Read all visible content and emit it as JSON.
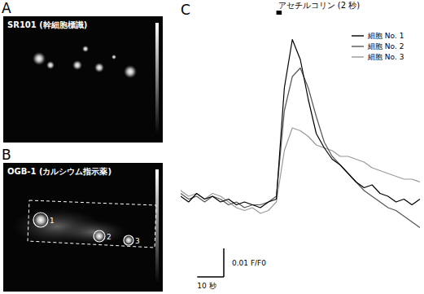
{
  "panels": [
    {
      "letter": "A",
      "label": "SR101 (幹細胞標識)"
    },
    {
      "letter": "B",
      "label": "OGB-1 (カルシウム指示薬)",
      "cells": [
        "1",
        "2",
        "3"
      ]
    }
  ],
  "chart_data": {
    "type": "line",
    "panel_letter": "C",
    "tick_labels": false,
    "legend": "upper right",
    "stimulus": {
      "label": "アセチルコリン (2 秒)",
      "start": 36,
      "end": 38
    },
    "scale_bars": [
      {
        "axis": "y",
        "value": 0.01,
        "label": "0.01 F/F0"
      },
      {
        "axis": "x",
        "value": 10,
        "label": "10 秒"
      }
    ],
    "xlim": [
      0,
      90
    ],
    "ylim": [
      -0.012,
      0.06
    ],
    "x": [
      0,
      3,
      6,
      9,
      12,
      15,
      18,
      21,
      24,
      27,
      30,
      33,
      36,
      39,
      42,
      45,
      48,
      51,
      54,
      57,
      60,
      63,
      66,
      69,
      72,
      75,
      78,
      81,
      84,
      87,
      90
    ],
    "series": [
      {
        "name": "細胞 No. 1",
        "color": "#000000",
        "values": [
          0.002,
          0.0,
          0.003,
          0.001,
          0.002,
          0.0,
          0.001,
          -0.001,
          0.0,
          -0.001,
          -0.002,
          0.0,
          0.001,
          0.04,
          0.057,
          0.05,
          0.036,
          0.024,
          0.019,
          0.015,
          0.013,
          0.01,
          0.007,
          0.005,
          0.006,
          0.003,
          0.002,
          0.0,
          0.001,
          -0.001,
          0.001
        ]
      },
      {
        "name": "細胞 No. 2",
        "color": "#555555",
        "values": [
          0.003,
          0.001,
          0.002,
          0.0,
          0.002,
          0.001,
          -0.001,
          0.0,
          -0.002,
          -0.001,
          -0.001,
          0.0,
          0.002,
          0.032,
          0.044,
          0.047,
          0.04,
          0.03,
          0.021,
          0.016,
          0.013,
          0.01,
          0.007,
          0.004,
          0.002,
          0.0,
          -0.002,
          -0.003,
          -0.005,
          -0.007,
          -0.009
        ]
      },
      {
        "name": "細胞 No. 3",
        "color": "#999999",
        "values": [
          0.004,
          0.002,
          0.003,
          0.001,
          0.003,
          0.002,
          0.0,
          -0.002,
          -0.003,
          -0.002,
          -0.004,
          -0.003,
          0.0,
          0.018,
          0.026,
          0.025,
          0.023,
          0.02,
          0.019,
          0.018,
          0.016,
          0.016,
          0.015,
          0.014,
          0.012,
          0.011,
          0.01,
          0.009,
          0.008,
          0.008,
          0.007
        ]
      }
    ]
  }
}
